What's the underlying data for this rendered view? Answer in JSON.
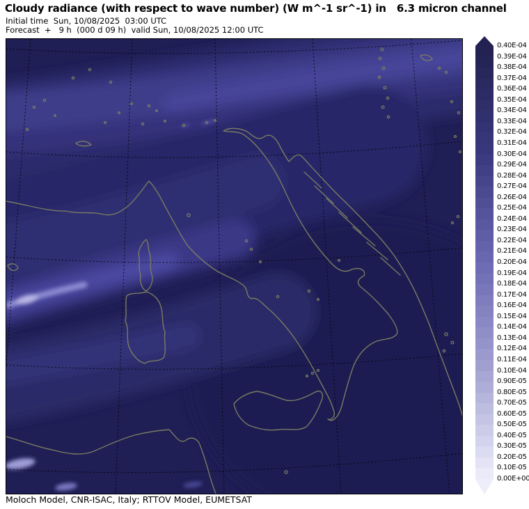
{
  "header": {
    "title": "Cloudy radiance (with respect to wave number) (W m^-1 sr^-1) in   6.3 micron channel",
    "initial_time_line": "Initial time  Sun, 10/08/2025  03:00 UTC",
    "forecast_line": "Forecast  +   9 h  (000 d 09 h)  valid Sun, 10/08/2025 12:00 UTC"
  },
  "footer": {
    "credit": "Moloch Model, CNR-ISAC, Italy; RTTOV Model, EUMETSAT"
  },
  "map": {
    "region": "Italy / central Mediterranean",
    "field": "cloudy radiance 6.3 micron channel",
    "base_color": "#1f1e55",
    "coastline_color": "#7b7b63",
    "grid_line_style": "dashed black"
  },
  "colorbar": {
    "orientation": "vertical",
    "units": "W m^-1 sr^-1",
    "top_value": "0.40E-04",
    "bottom_value": "0.00E+00",
    "ramp_stops": [
      "#222150",
      "#39387e",
      "#6b69b2",
      "#a3a2d2",
      "#eeeefb"
    ],
    "tick_labels": [
      "0.40E-04",
      "0.39E-04",
      "0.38E-04",
      "0.37E-04",
      "0.36E-04",
      "0.35E-04",
      "0.34E-04",
      "0.33E-04",
      "0.32E-04",
      "0.31E-04",
      "0.30E-04",
      "0.29E-04",
      "0.28E-04",
      "0.27E-04",
      "0.26E-04",
      "0.25E-04",
      "0.24E-04",
      "0.23E-04",
      "0.22E-04",
      "0.21E-04",
      "0.20E-04",
      "0.19E-04",
      "0.18E-04",
      "0.17E-04",
      "0.16E-04",
      "0.15E-04",
      "0.14E-04",
      "0.13E-04",
      "0.12E-04",
      "0.11E-04",
      "0.10E-04",
      "0.90E-05",
      "0.80E-05",
      "0.70E-05",
      "0.60E-05",
      "0.50E-05",
      "0.40E-05",
      "0.30E-05",
      "0.20E-05",
      "0.10E-05",
      "0.00E+00"
    ]
  }
}
